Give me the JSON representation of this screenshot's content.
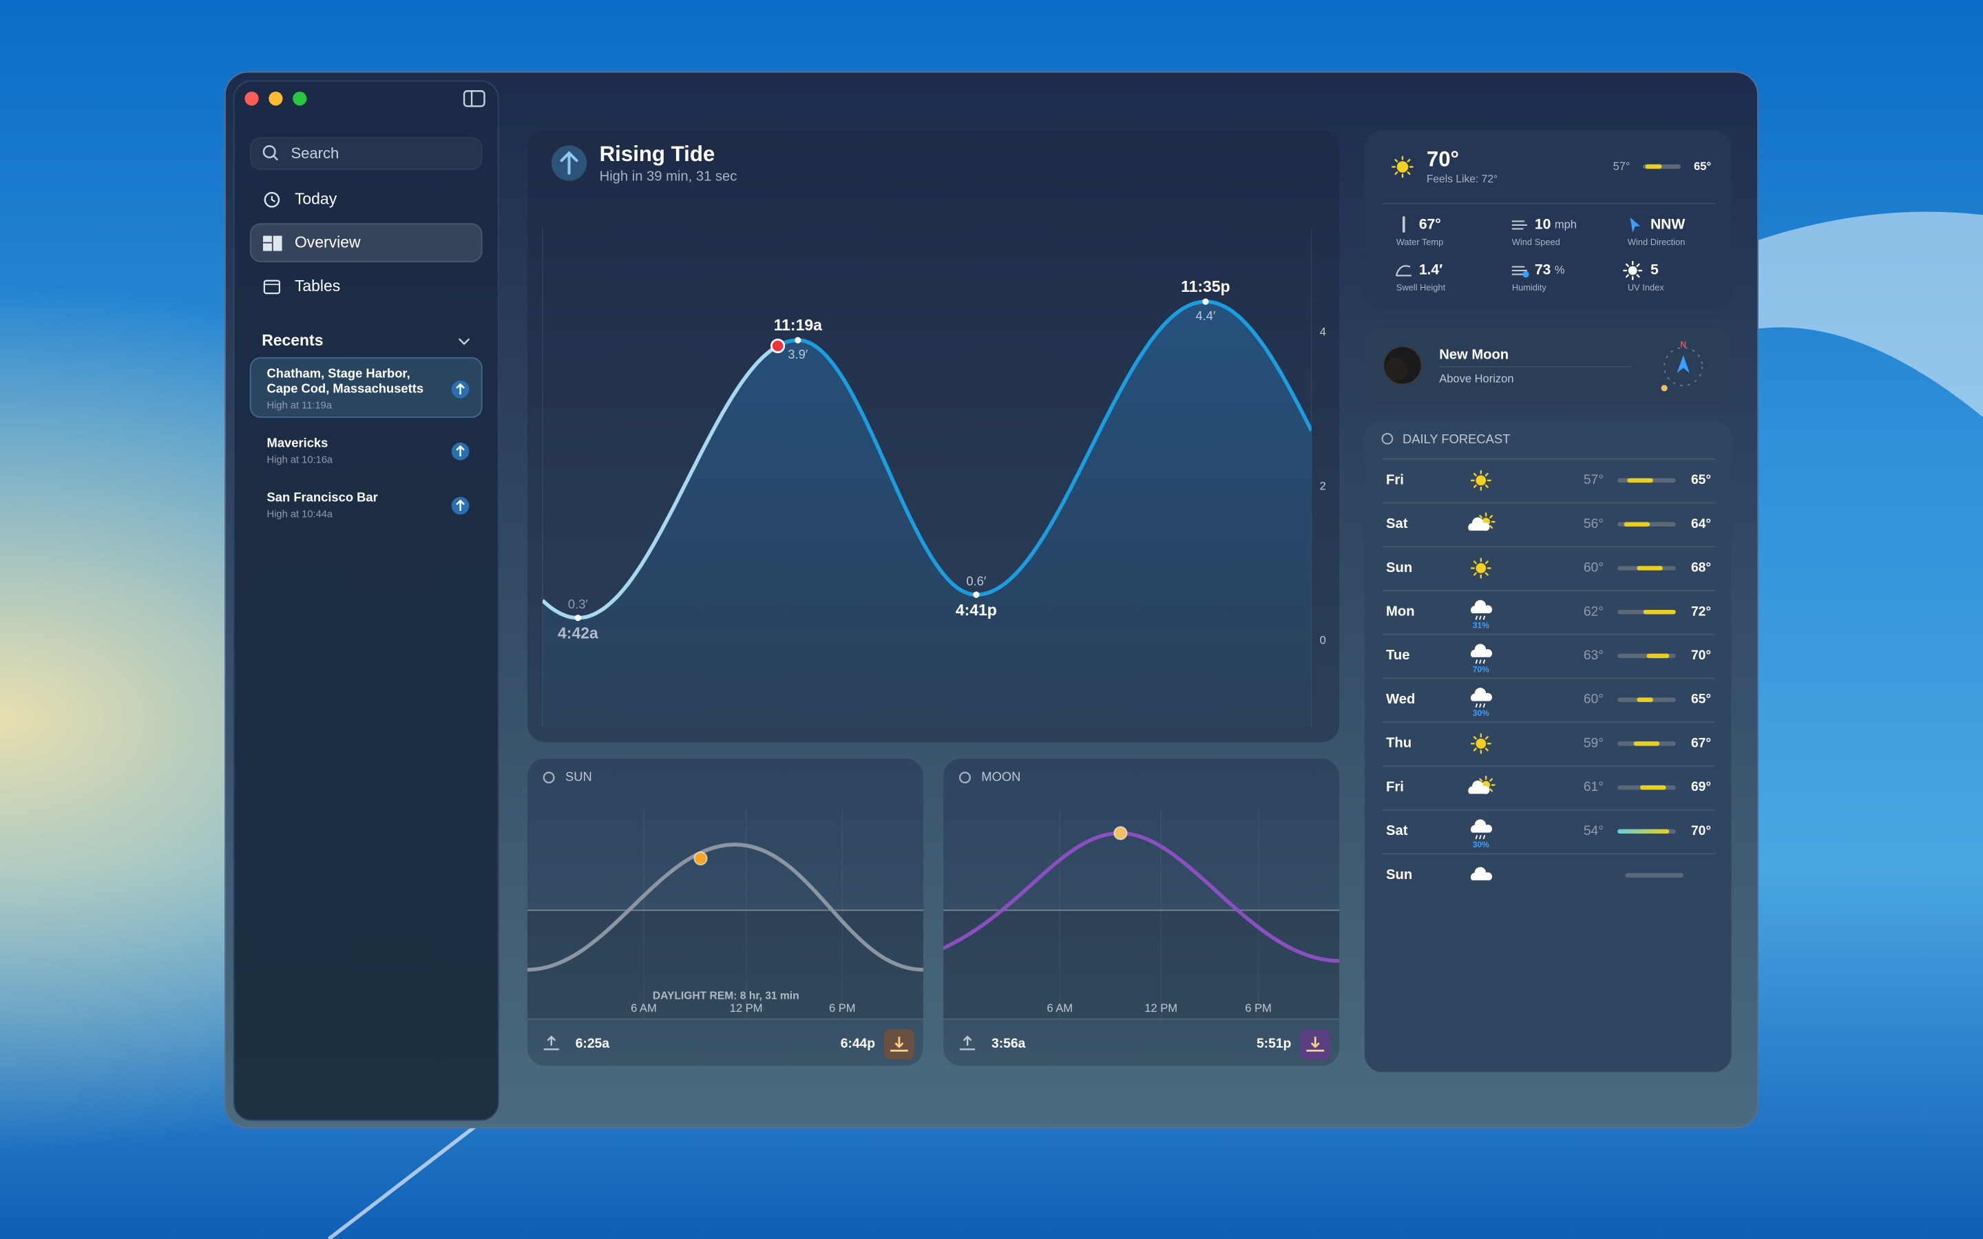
{
  "sidebar": {
    "search": "Search",
    "nav": [
      "Today",
      "Overview",
      "Tables"
    ],
    "recents_title": "Recents",
    "recents": [
      {
        "name_lines": [
          "Chatham, Stage Harbor,",
          "Cape Cod, Massachusetts"
        ],
        "subtitle": "High at 11:19a"
      },
      {
        "name_lines": [
          "Mavericks"
        ],
        "subtitle": "High at 10:16a"
      },
      {
        "name_lines": [
          "San Francisco Bar"
        ],
        "subtitle": "High at 10:44a"
      }
    ]
  },
  "tide": {
    "title": "Rising Tide",
    "subtitle": "High in 39 min, 31 sec",
    "extremes": [
      {
        "time": "4:42a",
        "height": 0.3,
        "height_label": "0.3′"
      },
      {
        "time": "11:19a",
        "height": 3.9,
        "height_label": "3.9′"
      },
      {
        "time": "4:41p",
        "height": 0.6,
        "height_label": "0.6′"
      },
      {
        "time": "11:35p",
        "height": 4.4,
        "height_label": "4.4′"
      }
    ],
    "yticks": [
      0,
      2,
      4
    ]
  },
  "sun": {
    "label": "SUN",
    "note": "DAYLIGHT REM: 8 hr, 31 min",
    "axis": [
      "6 AM",
      "12 PM",
      "6 PM"
    ],
    "rise": "6:25a",
    "set": "6:44p"
  },
  "moon": {
    "label": "MOON",
    "axis": [
      "6 AM",
      "12 PM",
      "6 PM"
    ],
    "rise": "3:56a",
    "set": "5:51p"
  },
  "weather": {
    "temp": "70°",
    "feels_like": "Feels Like: 72°",
    "low": "57°",
    "high": "65°",
    "details": [
      {
        "value": "67°",
        "label": "Water Temp"
      },
      {
        "value": "10",
        "unit": "mph",
        "label": "Wind Speed"
      },
      {
        "value": "NNW",
        "label": "Wind Direction"
      },
      {
        "value": "1.4′",
        "label": "Swell Height"
      },
      {
        "value": "73",
        "unit": "%",
        "label": "Humidity"
      },
      {
        "value": "5",
        "label": "UV Index"
      }
    ]
  },
  "moon_phase": {
    "name": "New Moon",
    "status": "Above Horizon",
    "compass": "N"
  },
  "forecast": {
    "title": "DAILY FORECAST",
    "days": [
      {
        "day": "Fri",
        "icon": "sun",
        "low": 57,
        "high": 65,
        "low_label": "57°",
        "high_label": "65°"
      },
      {
        "day": "Sat",
        "icon": "partly",
        "low": 56,
        "high": 64,
        "low_label": "56°",
        "high_label": "64°"
      },
      {
        "day": "Sun",
        "icon": "sun",
        "low": 60,
        "high": 68,
        "low_label": "60°",
        "high_label": "68°"
      },
      {
        "day": "Mon",
        "icon": "rain",
        "precip": "31%",
        "low": 62,
        "high": 72,
        "low_label": "62°",
        "high_label": "72°"
      },
      {
        "day": "Tue",
        "icon": "rain",
        "precip": "70%",
        "low": 63,
        "high": 70,
        "low_label": "63°",
        "high_label": "70°"
      },
      {
        "day": "Wed",
        "icon": "rain",
        "precip": "30%",
        "low": 60,
        "high": 65,
        "low_label": "60°",
        "high_label": "65°"
      },
      {
        "day": "Thu",
        "icon": "sun",
        "low": 59,
        "high": 67,
        "low_label": "59°",
        "high_label": "67°"
      },
      {
        "day": "Fri",
        "icon": "partly",
        "low": 61,
        "high": 69,
        "low_label": "61°",
        "high_label": "69°"
      },
      {
        "day": "Sat",
        "icon": "rain",
        "precip": "30%",
        "low": 54,
        "high": 70,
        "low_label": "54°",
        "high_label": "70°"
      },
      {
        "day": "Sun",
        "icon": "cloud"
      }
    ]
  }
}
